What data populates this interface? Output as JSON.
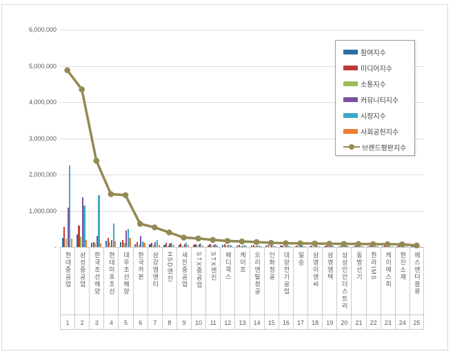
{
  "frame": {
    "background": "#ffffff",
    "border_color": "#d8d8d8"
  },
  "palette": {
    "grid": "#dcdcdc",
    "axis_text": "#595959",
    "legend_border": "#9b9b9b"
  },
  "chart_data": {
    "type": "bar",
    "subtype": "grouped bars with overlaid line (combo chart)",
    "title": "",
    "xlabel": "",
    "ylabel": "",
    "ylim": [
      0,
      6000000
    ],
    "grid": true,
    "legend_position": "upper right",
    "yticks": [
      {
        "value": 6000000,
        "label": "6,000,000"
      },
      {
        "value": 5000000,
        "label": "5,000,000"
      },
      {
        "value": 4000000,
        "label": "4,000,000"
      },
      {
        "value": 3000000,
        "label": "3,000,000"
      },
      {
        "value": 2000000,
        "label": "2,000,000"
      },
      {
        "value": 1000000,
        "label": "1,000,000"
      },
      {
        "value": 0,
        "label": "-"
      }
    ],
    "categories": [
      "현대중공업",
      "삼성중공업",
      "한국조선해양",
      "현대미포조선",
      "대우조선해양",
      "한국카본",
      "삼강엠앤티",
      "HSD엔진",
      "세진중공업",
      "STX중공업",
      "STX엔진",
      "메디콕스",
      "케이프",
      "오리엔탈정공",
      "인화정공",
      "대양전기공업",
      "일승",
      "삼영이엔씨",
      "삼영엠텍",
      "상상인인더스트리",
      "동방선기",
      "한라IMS",
      "케이에스피",
      "현진소재",
      "에스앤더블류"
    ],
    "ranks": [
      "1",
      "2",
      "3",
      "4",
      "5",
      "6",
      "7",
      "8",
      "9",
      "10",
      "11",
      "12",
      "13",
      "14",
      "15",
      "16",
      "17",
      "18",
      "19",
      "20",
      "21",
      "22",
      "23",
      "24",
      "25"
    ],
    "series": [
      {
        "name": "참여지수",
        "type": "bar",
        "color": "#2e6ca4",
        "values": [
          250000,
          350000,
          110000,
          170000,
          130000,
          70000,
          80000,
          60000,
          55000,
          50000,
          45000,
          50000,
          40000,
          30000,
          30000,
          30000,
          28000,
          25000,
          25000,
          28000,
          20000,
          20000,
          20000,
          22000,
          12000
        ]
      },
      {
        "name": "미디어지수",
        "type": "bar",
        "color": "#be3b38",
        "values": [
          550000,
          600000,
          140000,
          240000,
          200000,
          130000,
          110000,
          105000,
          90000,
          80000,
          70000,
          75000,
          60000,
          50000,
          48000,
          45000,
          40000,
          38000,
          35000,
          38000,
          33000,
          30000,
          30000,
          32000,
          18000
        ]
      },
      {
        "name": "소통지수",
        "type": "bar",
        "color": "#9bbb59",
        "values": [
          220000,
          280000,
          120000,
          130000,
          110000,
          60000,
          50000,
          40000,
          38000,
          35000,
          30000,
          30000,
          25000,
          20000,
          20000,
          20000,
          18000,
          15000,
          15000,
          18000,
          14000,
          13000,
          13000,
          14000,
          8000
        ]
      },
      {
        "name": "커뮤니티지수",
        "type": "bar",
        "color": "#7a52a0",
        "values": [
          1080000,
          1380000,
          310000,
          190000,
          450000,
          300000,
          130000,
          90000,
          70000,
          80000,
          60000,
          50000,
          40000,
          35000,
          30000,
          28000,
          25000,
          24000,
          20000,
          24000,
          20000,
          19000,
          19000,
          20000,
          12000
        ]
      },
      {
        "name": "시장지수",
        "type": "bar",
        "color": "#3ba8c8",
        "values": [
          2250000,
          1150000,
          1420000,
          650000,
          500000,
          150000,
          190000,
          120000,
          115000,
          90000,
          80000,
          60000,
          50000,
          45000,
          40000,
          35000,
          33000,
          30000,
          30000,
          30000,
          26000,
          25000,
          25000,
          26000,
          14000
        ]
      },
      {
        "name": "사회공헌지수",
        "type": "bar",
        "color": "#ed7d31",
        "values": [
          220000,
          200000,
          90000,
          150000,
          250000,
          110000,
          60000,
          50000,
          48000,
          40000,
          35000,
          30000,
          28000,
          25000,
          20000,
          20000,
          18000,
          15000,
          15000,
          18000,
          14000,
          13000,
          13000,
          14000,
          8000
        ]
      },
      {
        "name": "브랜드평판지수",
        "type": "line",
        "color": "#938a54",
        "values": [
          4880000,
          4350000,
          2380000,
          1460000,
          1430000,
          640000,
          540000,
          400000,
          260000,
          235000,
          195000,
          165000,
          150000,
          135000,
          115000,
          105000,
          100000,
          95000,
          90000,
          85000,
          82000,
          79000,
          76000,
          72000,
          42000
        ]
      }
    ]
  }
}
